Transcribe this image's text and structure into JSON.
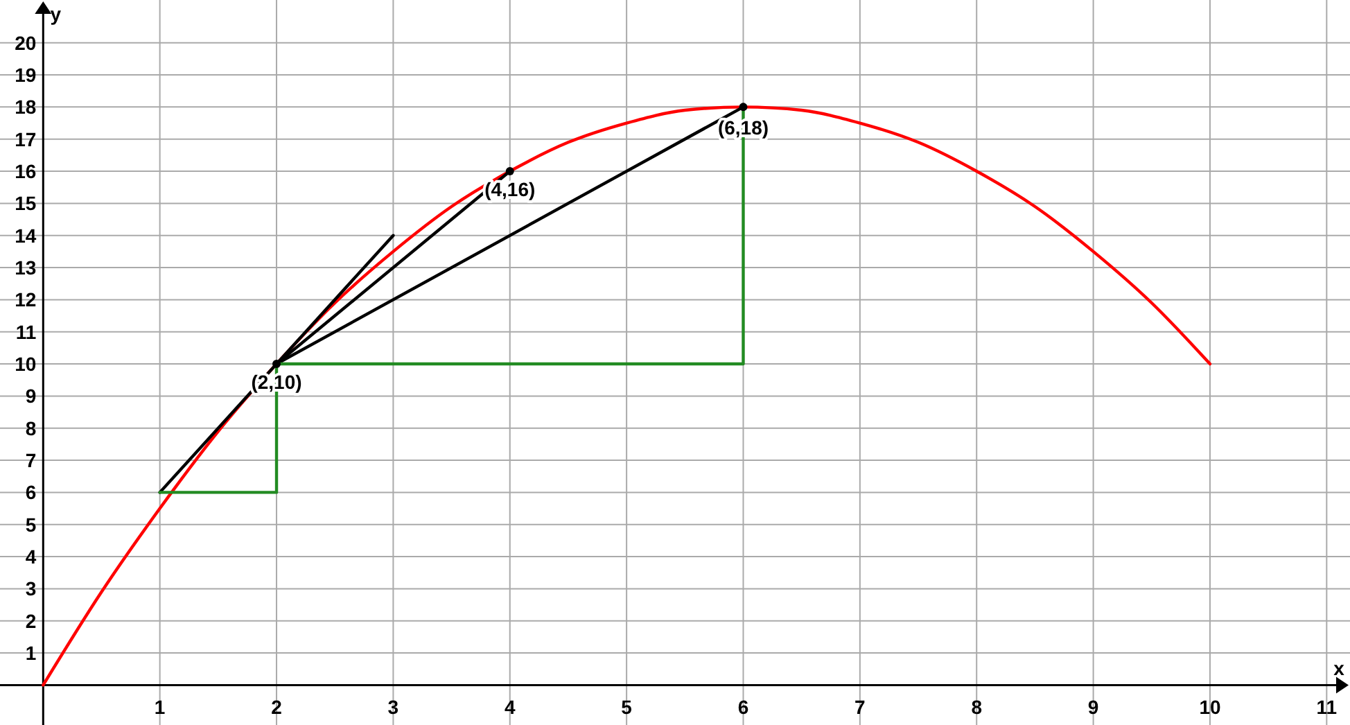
{
  "chart_data": {
    "type": "line",
    "xlabel": "x",
    "ylabel": "y",
    "xlim": [
      -0.37,
      11.2
    ],
    "ylim": [
      -1.2,
      20.9
    ],
    "xticks": [
      1,
      2,
      3,
      4,
      5,
      6,
      7,
      8,
      9,
      10,
      11
    ],
    "yticks": [
      1,
      2,
      3,
      4,
      5,
      6,
      7,
      8,
      9,
      10,
      11,
      12,
      13,
      14,
      15,
      16,
      17,
      18,
      19,
      20
    ],
    "grid": true,
    "marker": "none",
    "line_style": "solid",
    "series": [
      {
        "color": "#ff0000",
        "x": [
          0,
          0.5,
          1,
          1.5,
          2,
          2.5,
          3,
          3.5,
          4,
          4.5,
          5,
          5.5,
          6,
          6.5,
          7,
          7.5,
          8,
          8.5,
          9,
          9.5,
          10
        ],
        "values": [
          0,
          2.9,
          5.5,
          7.9,
          10,
          11.9,
          13.5,
          14.9,
          16,
          16.9,
          17.5,
          17.9,
          18,
          17.9,
          17.5,
          16.9,
          16,
          14.9,
          13.5,
          11.9,
          10
        ]
      },
      {
        "color": "#000000",
        "x": [
          1,
          3
        ],
        "values": [
          6,
          14
        ]
      },
      {
        "color": "#000000",
        "x": [
          2,
          4
        ],
        "values": [
          10,
          16
        ]
      },
      {
        "color": "#000000",
        "x": [
          2,
          6
        ],
        "values": [
          10,
          18
        ]
      },
      {
        "color": "#228b22",
        "x": [
          1,
          2,
          2
        ],
        "values": [
          6,
          6,
          10
        ]
      },
      {
        "color": "#228b22",
        "x": [
          2,
          6,
          6
        ],
        "values": [
          10,
          10,
          18
        ]
      },
      {
        "type": "scatter",
        "marker": "circle",
        "color": "#000000",
        "x": [
          2,
          4,
          6
        ],
        "values": [
          10,
          16,
          18
        ]
      }
    ],
    "annotations": [
      {
        "text": "(2,10)",
        "x": 2,
        "y": 10
      },
      {
        "text": "(4,16)",
        "x": 4,
        "y": 16
      },
      {
        "text": "(6,18)",
        "x": 6,
        "y": 18
      }
    ]
  }
}
